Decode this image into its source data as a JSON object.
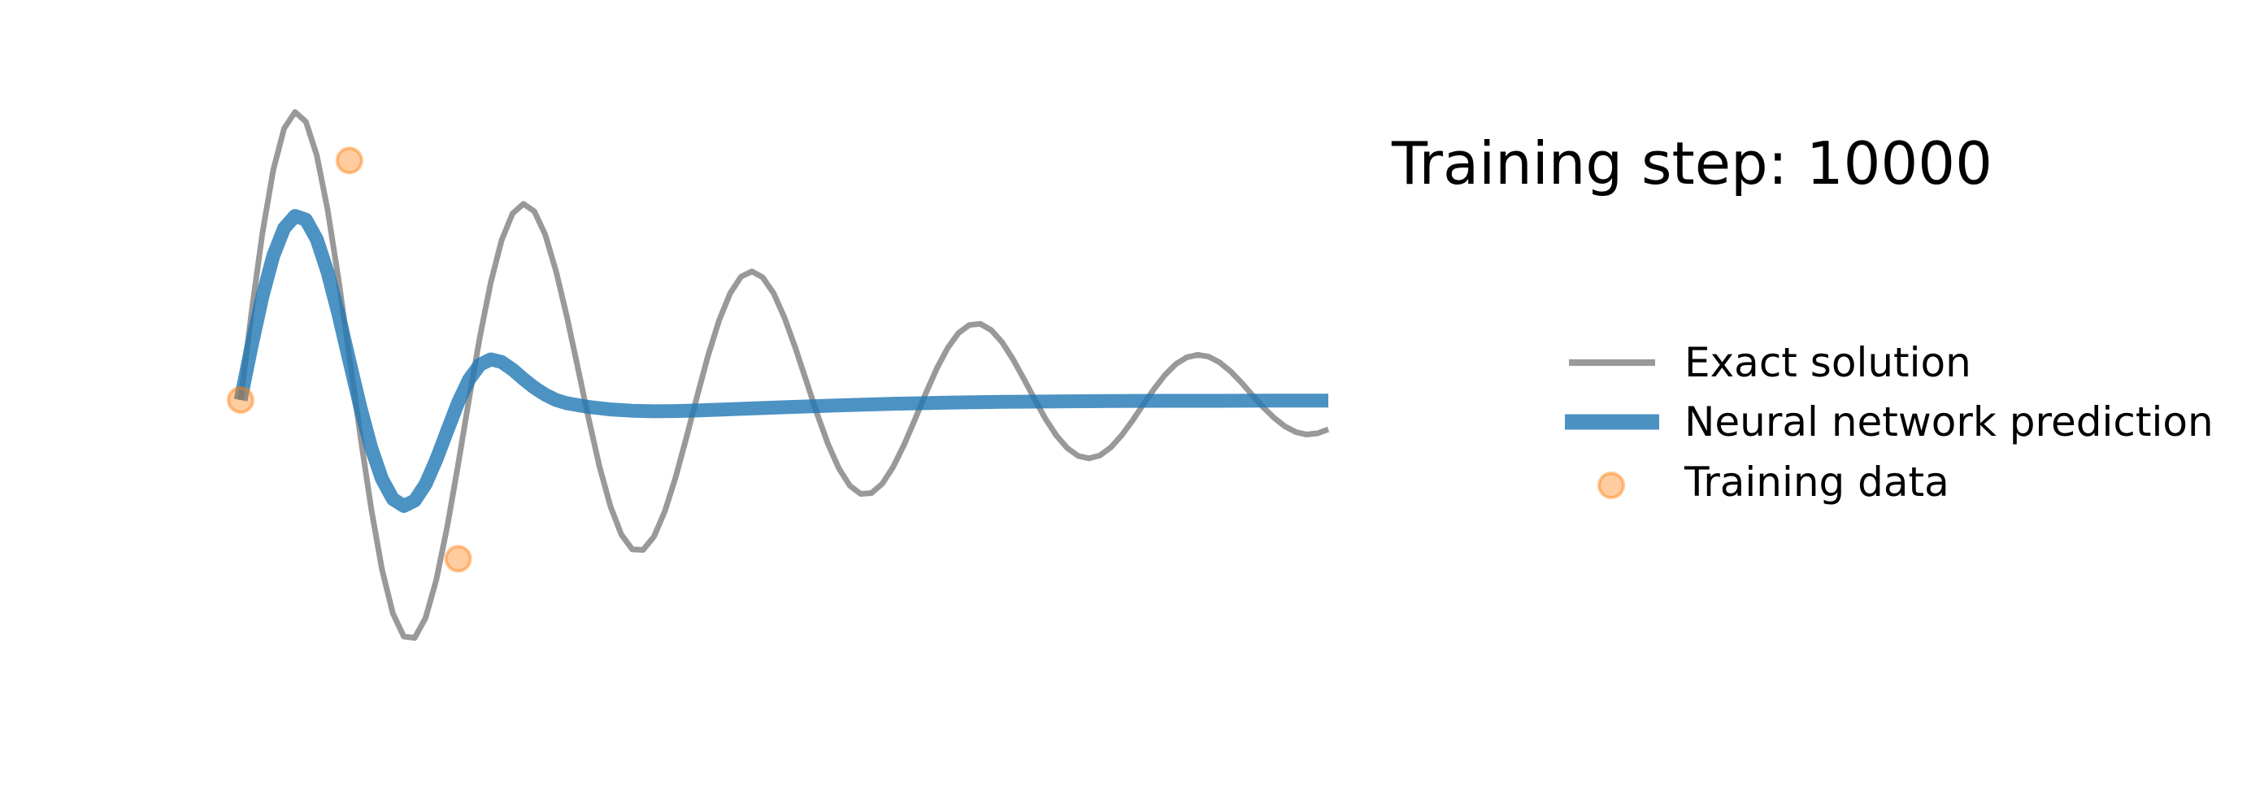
{
  "chart_data": {
    "type": "line",
    "title": "Training step: 10000",
    "xlabel": "",
    "ylabel": "",
    "axes_visible": false,
    "grid": false,
    "legend_position": "right",
    "xlim": [
      0,
      1
    ],
    "ylim": [
      -1.25,
      1.25
    ],
    "series": [
      {
        "name": "Exact solution",
        "kind": "line",
        "color": "#999999",
        "x": [
          0,
          0.01,
          0.02,
          0.03,
          0.04,
          0.05,
          0.06,
          0.07,
          0.08,
          0.09,
          0.1,
          0.11,
          0.12,
          0.13,
          0.14,
          0.15,
          0.16,
          0.17,
          0.18,
          0.19,
          0.2,
          0.21,
          0.22,
          0.23,
          0.24,
          0.25,
          0.26,
          0.27,
          0.28,
          0.29,
          0.3,
          0.31,
          0.32,
          0.33,
          0.34,
          0.35,
          0.36,
          0.37,
          0.38,
          0.39,
          0.4,
          0.41,
          0.42,
          0.43,
          0.44,
          0.45,
          0.46,
          0.47,
          0.48,
          0.49,
          0.5,
          0.51,
          0.52,
          0.53,
          0.54,
          0.55,
          0.56,
          0.57,
          0.58,
          0.59,
          0.6,
          0.61,
          0.62,
          0.63,
          0.64,
          0.65,
          0.66,
          0.67,
          0.68,
          0.69,
          0.7,
          0.71,
          0.72,
          0.73,
          0.74,
          0.75,
          0.76,
          0.77,
          0.78,
          0.79,
          0.8,
          0.81,
          0.82,
          0.83,
          0.84,
          0.85,
          0.86,
          0.87,
          0.88,
          0.89,
          0.9,
          0.91,
          0.92,
          0.93,
          0.94,
          0.95,
          0.96,
          0.97,
          0.98,
          0.99,
          1.0
        ],
        "y": [
          0.0,
          0.325,
          0.62,
          0.854,
          1.009,
          1.07,
          1.034,
          0.909,
          0.707,
          0.449,
          0.16,
          -0.132,
          -0.403,
          -0.63,
          -0.793,
          -0.879,
          -0.884,
          -0.81,
          -0.667,
          -0.47,
          -0.239,
          0.004,
          0.236,
          0.437,
          0.594,
          0.693,
          0.729,
          0.701,
          0.615,
          0.479,
          0.309,
          0.12,
          -0.071,
          -0.248,
          -0.395,
          -0.5,
          -0.555,
          -0.557,
          -0.508,
          -0.414,
          -0.286,
          -0.137,
          0.019,
          0.168,
          0.297,
          0.396,
          0.458,
          0.478,
          0.456,
          0.397,
          0.306,
          0.194,
          0.071,
          -0.051,
          -0.163,
          -0.254,
          -0.318,
          -0.349,
          -0.346,
          -0.311,
          -0.248,
          -0.166,
          -0.072,
          0.025,
          0.117,
          0.193,
          0.249,
          0.279,
          0.283,
          0.26,
          0.215,
          0.152,
          0.079,
          0.003,
          -0.07,
          -0.132,
          -0.179,
          -0.208,
          -0.217,
          -0.206,
          -0.176,
          -0.131,
          -0.076,
          -0.016,
          0.042,
          0.094,
          0.134,
          0.159,
          0.168,
          0.161,
          0.14,
          0.107,
          0.065,
          0.019,
          -0.026,
          -0.066,
          -0.098,
          -0.119,
          -0.128,
          -0.124,
          -0.109
        ]
      },
      {
        "name": "Neural network prediction",
        "kind": "line",
        "color": "#1f77b4",
        "x": [
          0,
          0.01,
          0.02,
          0.03,
          0.04,
          0.05,
          0.06,
          0.07,
          0.08,
          0.09,
          0.1,
          0.11,
          0.12,
          0.13,
          0.14,
          0.15,
          0.16,
          0.17,
          0.18,
          0.19,
          0.2,
          0.21,
          0.22,
          0.23,
          0.24,
          0.25,
          0.26,
          0.27,
          0.28,
          0.29,
          0.3,
          0.32,
          0.34,
          0.36,
          0.38,
          0.4,
          0.42,
          0.44,
          0.46,
          0.48,
          0.5,
          0.55,
          0.6,
          0.65,
          0.7,
          0.75,
          0.8,
          0.85,
          0.9,
          0.95,
          1.0
        ],
        "y": [
          0.0,
          0.2,
          0.385,
          0.535,
          0.638,
          0.684,
          0.67,
          0.597,
          0.475,
          0.318,
          0.145,
          -0.026,
          -0.177,
          -0.294,
          -0.368,
          -0.394,
          -0.374,
          -0.313,
          -0.221,
          -0.114,
          -0.009,
          0.076,
          0.131,
          0.151,
          0.141,
          0.113,
          0.078,
          0.046,
          0.02,
          0.0,
          -0.012,
          -0.026,
          -0.035,
          -0.04,
          -0.042,
          -0.041,
          -0.039,
          -0.036,
          -0.033,
          -0.03,
          -0.027,
          -0.02,
          -0.014,
          -0.01,
          -0.007,
          -0.005,
          -0.004,
          -0.003,
          -0.003,
          -0.002,
          -0.002
        ]
      },
      {
        "name": "Training data",
        "kind": "scatter",
        "color": "#ff7f0e",
        "x": [
          0.0,
          0.1,
          0.2
        ],
        "y": [
          0.0,
          0.89,
          -0.59
        ]
      }
    ]
  }
}
